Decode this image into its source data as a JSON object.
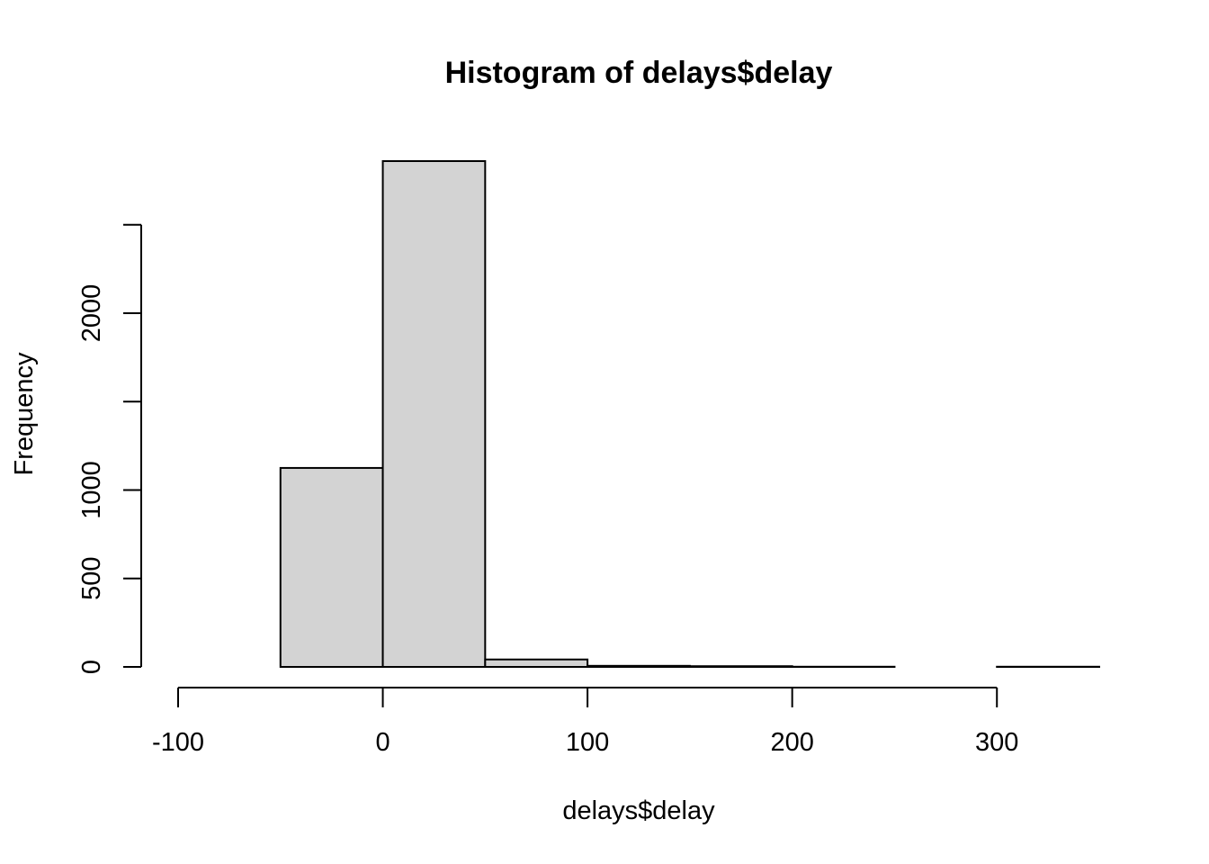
{
  "chart_data": {
    "type": "bar",
    "title": "Histogram of delays$delay",
    "xlabel": "delays$delay",
    "ylabel": "Frequency",
    "bin_edges": [
      -100,
      -50,
      0,
      50,
      100,
      150,
      200,
      250,
      300,
      350
    ],
    "values": [
      0,
      1125,
      2860,
      42,
      6,
      4,
      1,
      0,
      1
    ],
    "xlim": [
      -100,
      350
    ],
    "ylim": [
      0,
      2860
    ],
    "x_ticks": [
      -100,
      0,
      100,
      200,
      300
    ],
    "y_ticks": [
      0,
      500,
      1000,
      1500,
      2000,
      2500
    ],
    "y_tick_labels": [
      "0",
      "500",
      "1000",
      "",
      "2000",
      ""
    ],
    "bar_color": "#d3d3d3",
    "border_color": "#000000",
    "grid": false
  }
}
